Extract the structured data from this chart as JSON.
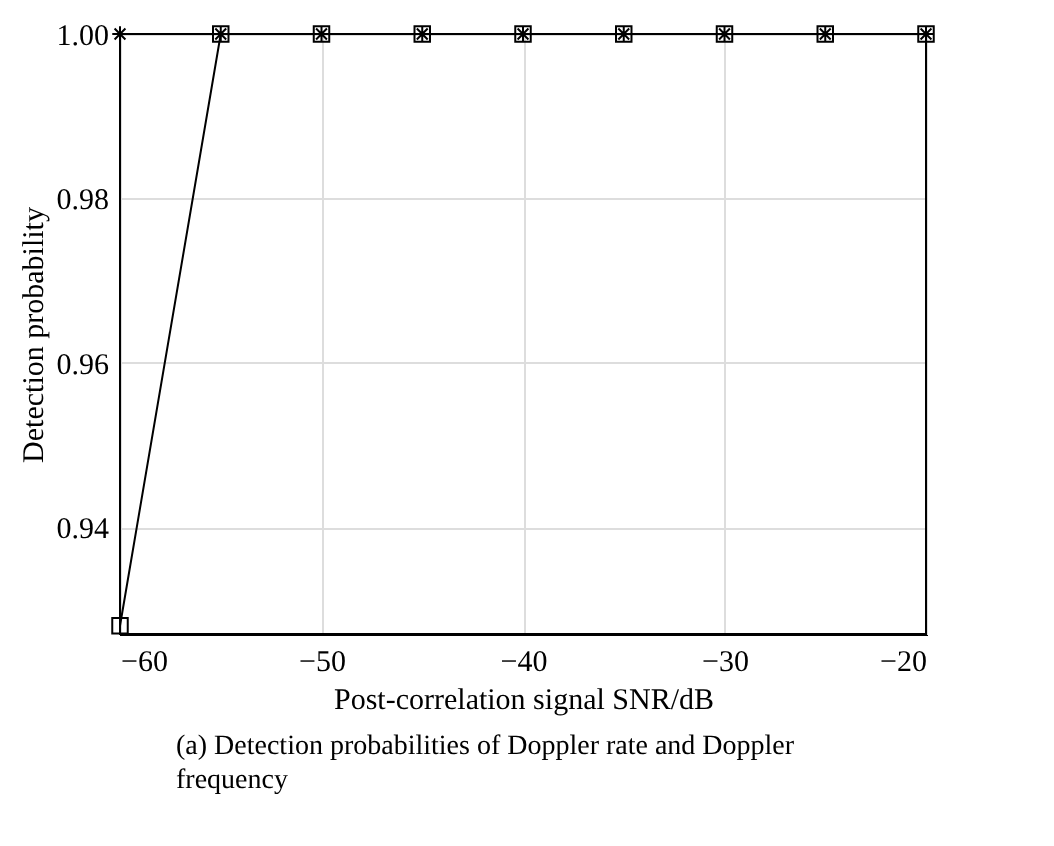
{
  "chart_data": {
    "type": "line",
    "xlabel": "Post-correlation signal SNR/dB",
    "ylabel": "Detection probability",
    "annotations": [
      "(a) Detection probabilities of Doppler rate and Doppler frequency"
    ],
    "x": [
      -60,
      -55,
      -50,
      -45,
      -40,
      -35,
      -30,
      -25,
      -20
    ],
    "series": [
      {
        "color": "#000000",
        "marker": "square",
        "values": [
          0.928,
          1,
          1,
          1,
          1,
          1,
          1,
          1,
          1
        ]
      },
      {
        "type": "scatter",
        "color": "#000000",
        "marker": "cross",
        "values": [
          1,
          1,
          1,
          1,
          1,
          1,
          1,
          1,
          1
        ]
      }
    ],
    "xlim": [
      -60,
      -20
    ],
    "xticks": [
      -60,
      -50,
      -40,
      -30,
      -20
    ],
    "ylim": [
      0.927,
      1.0
    ],
    "yticks": [
      0.94,
      0.96,
      0.98,
      {
        "value": 1,
        "label": "1.00"
      }
    ],
    "grid": true,
    "line_style": "solid"
  }
}
